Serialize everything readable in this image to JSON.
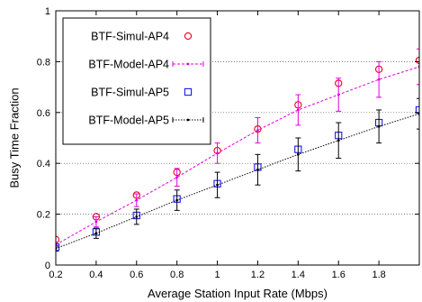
{
  "chart_data": {
    "type": "line",
    "xlabel": "Average Station Input Rate (Mbps)",
    "ylabel": "Busy Time Fraction",
    "xlim": [
      0.2,
      2.0
    ],
    "ylim": [
      0,
      1
    ],
    "xticks": [
      "0.2",
      "0.4",
      "0.6",
      "0.8",
      "1",
      "1.2",
      "1.4",
      "1.6",
      "1.8"
    ],
    "yticks": [
      "0",
      "0.2",
      "0.4",
      "0.6",
      "0.8",
      "1"
    ],
    "grid": "horizontal-dotted",
    "legend_position": "top-left",
    "x": [
      0.2,
      0.4,
      0.6,
      0.8,
      1.0,
      1.2,
      1.4,
      1.6,
      1.8,
      2.0
    ],
    "series": [
      {
        "name": "BTF-Simul-AP4",
        "style": "markers-circle",
        "color": "#e8001a",
        "values": [
          0.1,
          0.19,
          0.275,
          0.365,
          0.45,
          0.535,
          0.63,
          0.715,
          0.77,
          0.805
        ]
      },
      {
        "name": "BTF-Model-AP4",
        "style": "dashed-line-errorbars",
        "color": "#e000e0",
        "values": [
          0.08,
          0.17,
          0.255,
          0.345,
          0.44,
          0.53,
          0.61,
          0.67,
          0.73,
          0.78
        ],
        "errors": [
          0.01,
          0.02,
          0.025,
          0.035,
          0.04,
          0.05,
          0.06,
          0.065,
          0.07,
          0.07
        ]
      },
      {
        "name": "BTF-Simul-AP5",
        "style": "markers-square",
        "color": "#1a1ae8",
        "values": [
          0.07,
          0.13,
          0.195,
          0.26,
          0.32,
          0.385,
          0.455,
          0.51,
          0.56,
          0.61
        ]
      },
      {
        "name": "BTF-Model-AP5",
        "style": "dotted-line-errorbars",
        "color": "#000000",
        "values": [
          0.065,
          0.125,
          0.19,
          0.255,
          0.315,
          0.375,
          0.435,
          0.49,
          0.545,
          0.595
        ],
        "errors": [
          0.01,
          0.02,
          0.03,
          0.04,
          0.05,
          0.06,
          0.065,
          0.07,
          0.065,
          0.06
        ]
      }
    ]
  }
}
